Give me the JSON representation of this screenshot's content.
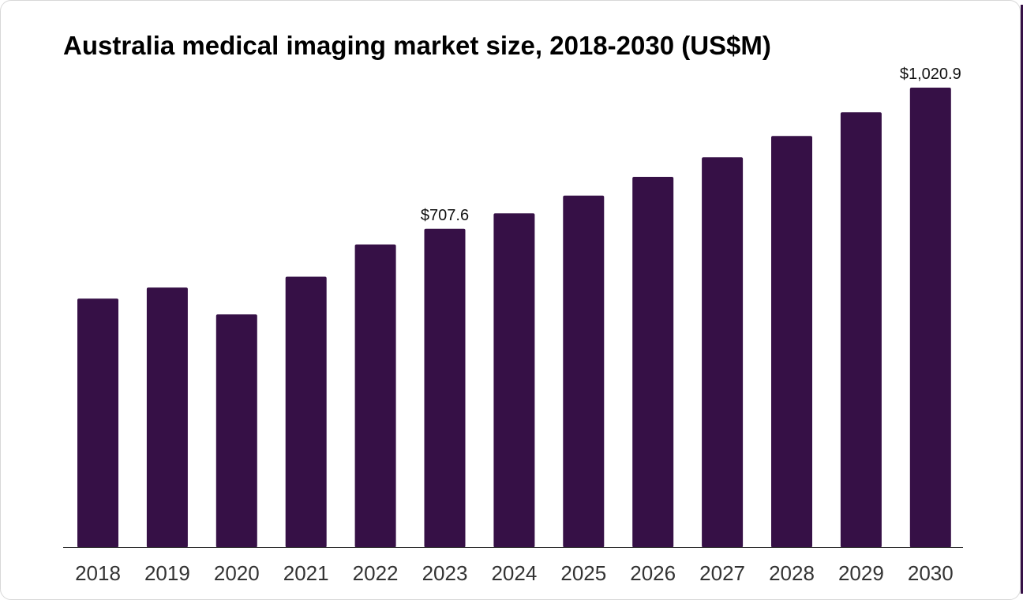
{
  "chart_data": {
    "type": "bar",
    "title": "Australia medical imaging market size, 2018-2030 (US$M)",
    "xlabel": "",
    "ylabel": "",
    "categories": [
      "2018",
      "2019",
      "2020",
      "2021",
      "2022",
      "2023",
      "2024",
      "2025",
      "2026",
      "2027",
      "2028",
      "2029",
      "2030"
    ],
    "values": [
      552.4,
      577.2,
      517.3,
      601.1,
      672.9,
      707.6,
      741.7,
      781.3,
      822.9,
      866.1,
      913.7,
      966.3,
      1020.9
    ],
    "data_labels": [
      {
        "category": "2023",
        "text": "$707.6"
      },
      {
        "category": "2030",
        "text": "$1,020.9"
      }
    ],
    "ylim": [
      0,
      1020.9
    ],
    "grid": false,
    "legend": "none",
    "colors": {
      "bar": "#361046",
      "axis": "#333333"
    }
  }
}
